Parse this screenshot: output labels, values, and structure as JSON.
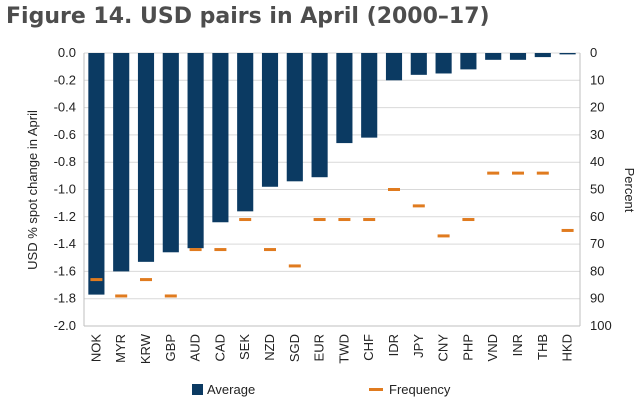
{
  "figure_title": "Figure 14.   USD pairs in April (2000–17)",
  "chart_data": {
    "type": "bar",
    "categories": [
      "NOK",
      "MYR",
      "KRW",
      "GBP",
      "AUD",
      "CAD",
      "SEK",
      "NZD",
      "SGD",
      "EUR",
      "TWD",
      "CHF",
      "IDR",
      "JPY",
      "CNY",
      "PHP",
      "VND",
      "INR",
      "THB",
      "HKD"
    ],
    "series": [
      {
        "name": "Average",
        "type": "bar",
        "axis": "left",
        "color": "#0b3a62",
        "values": [
          -1.77,
          -1.6,
          -1.53,
          -1.46,
          -1.43,
          -1.24,
          -1.16,
          -0.98,
          -0.94,
          -0.91,
          -0.66,
          -0.62,
          -0.2,
          -0.16,
          -0.15,
          -0.12,
          -0.05,
          -0.05,
          -0.03,
          -0.01
        ]
      },
      {
        "name": "Frequency",
        "type": "marker",
        "axis": "right",
        "color": "#e07b1f",
        "values": [
          83,
          89,
          83,
          89,
          72,
          72,
          61,
          72,
          78,
          61,
          61,
          61,
          50,
          56,
          67,
          61,
          44,
          44,
          44,
          65
        ]
      }
    ],
    "ylabel_left": "USD % spot change in April",
    "ylabel_right": "Percent",
    "ylim_left": [
      -2.0,
      0.0
    ],
    "yticks_left": [
      "0.0",
      "-0.2",
      "-0.4",
      "-0.6",
      "-0.8",
      "-1.0",
      "-1.2",
      "-1.4",
      "-1.6",
      "-1.8",
      "-2.0"
    ],
    "ylim_right": [
      0,
      100
    ],
    "yticks_right": [
      "0",
      "10",
      "20",
      "30",
      "40",
      "50",
      "60",
      "70",
      "80",
      "90",
      "100"
    ],
    "grid": true,
    "legend_position": "bottom"
  }
}
